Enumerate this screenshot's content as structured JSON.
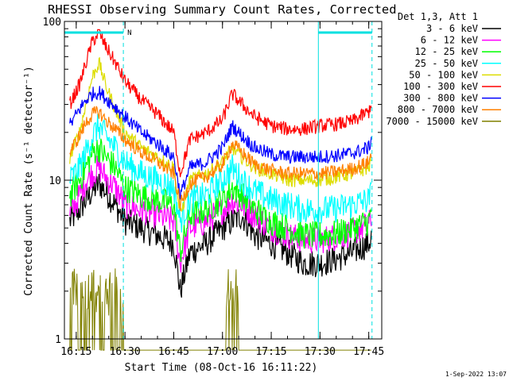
{
  "chart_data": {
    "type": "line",
    "title": "RHESSI Observing Summary Count Rates, Corrected",
    "xlabel": "Start Time (08-Oct-16 16:11:22)",
    "ylabel": "Corrected Count Rate (s⁻¹ detector⁻¹)",
    "yscale": "log",
    "ylim": [
      1,
      100
    ],
    "xlim": [
      "16:11:22",
      "17:49:00"
    ],
    "x_ticks": [
      "16:15",
      "16:30",
      "16:45",
      "17:00",
      "17:15",
      "17:30",
      "17:45"
    ],
    "y_ticks": [
      "1",
      "10",
      "100"
    ],
    "grid": false,
    "legend": {
      "header": "Det 1,3, Att 1",
      "position": "right-outside"
    },
    "annotations": {
      "timestamp": "1-Sep-2022 13:07",
      "segment_flag": "N",
      "cyan_bars": [
        [
          "16:11:22",
          "16:29:30"
        ],
        [
          "17:29:30",
          "17:46:00"
        ]
      ],
      "dashed_lines": [
        "16:29:30",
        "17:46:00"
      ],
      "solid_lines": [
        "17:29:30"
      ]
    },
    "x_points": [
      "16:13",
      "16:16",
      "16:18",
      "16:20",
      "16:22",
      "16:24",
      "16:27",
      "16:30",
      "16:35",
      "16:40",
      "16:45",
      "16:47",
      "16:50",
      "16:55",
      "17:00",
      "17:03",
      "17:06",
      "17:10",
      "17:15",
      "17:20",
      "17:25",
      "17:30",
      "17:35",
      "17:40",
      "17:45",
      "17:46"
    ],
    "series": [
      {
        "name": "3 - 6 keV",
        "color": "#000000",
        "values": [
          5.5,
          6.5,
          7.5,
          8.5,
          9.5,
          8.5,
          7.0,
          5.5,
          5.0,
          4.5,
          4.0,
          2.0,
          3.5,
          4.0,
          5.0,
          5.5,
          6.0,
          4.5,
          4.0,
          3.5,
          3.0,
          3.0,
          3.2,
          3.5,
          4.0,
          4.5
        ]
      },
      {
        "name": "6 - 12 keV",
        "color": "#ff00ff",
        "values": [
          6.0,
          8.0,
          10.0,
          11.0,
          12.0,
          10.5,
          9.0,
          7.0,
          6.5,
          6.0,
          5.5,
          3.0,
          5.0,
          5.5,
          6.5,
          7.5,
          7.0,
          6.0,
          5.0,
          4.5,
          4.2,
          4.2,
          4.4,
          4.7,
          5.2,
          6.0
        ]
      },
      {
        "name": "12 - 25 keV",
        "color": "#00ff00",
        "values": [
          8.0,
          10.0,
          12.0,
          15.0,
          16.0,
          14.0,
          12.0,
          9.0,
          8.0,
          7.5,
          7.0,
          3.5,
          6.0,
          6.5,
          7.5,
          9.0,
          8.0,
          6.5,
          5.5,
          5.0,
          4.5,
          4.5,
          4.6,
          5.0,
          5.5,
          6.5
        ]
      },
      {
        "name": "25 - 50 keV",
        "color": "#00ffff",
        "values": [
          10.0,
          12.0,
          15.0,
          19.0,
          22.0,
          19.0,
          16.0,
          13.0,
          11.0,
          10.0,
          9.0,
          5.5,
          7.5,
          8.0,
          10.0,
          12.0,
          10.0,
          8.5,
          7.5,
          7.0,
          6.5,
          6.5,
          6.6,
          7.0,
          7.5,
          8.5
        ]
      },
      {
        "name": "50 - 100 keV",
        "color": "#dddd00",
        "values": [
          14.0,
          20.0,
          30.0,
          45.0,
          55.0,
          40.0,
          28.0,
          20.0,
          16.0,
          14.0,
          12.0,
          6.0,
          10.0,
          11.0,
          13.0,
          16.0,
          14.0,
          12.0,
          11.0,
          10.0,
          10.0,
          10.0,
          10.5,
          11.0,
          12.0,
          14.0
        ]
      },
      {
        "name": "100 - 300 keV",
        "color": "#ff0000",
        "values": [
          30.0,
          40.0,
          55.0,
          75.0,
          85.0,
          70.0,
          55.0,
          42.0,
          32.0,
          26.0,
          20.0,
          11.0,
          18.0,
          20.0,
          24.0,
          35.0,
          30.0,
          25.0,
          22.0,
          21.0,
          21.0,
          22.0,
          22.5,
          23.5,
          27.0,
          32.0
        ]
      },
      {
        "name": "300 - 800 keV",
        "color": "#0000ff",
        "values": [
          22.0,
          28.0,
          32.0,
          35.0,
          36.0,
          33.0,
          29.0,
          25.0,
          20.0,
          17.0,
          14.0,
          8.0,
          12.0,
          13.0,
          16.0,
          22.0,
          19.0,
          16.0,
          14.5,
          14.0,
          14.0,
          14.0,
          14.3,
          14.8,
          16.0,
          19.0
        ]
      },
      {
        "name": "800 - 7000 keV",
        "color": "#ff8000",
        "values": [
          15.0,
          19.0,
          23.0,
          26.0,
          27.0,
          24.0,
          21.0,
          18.0,
          15.0,
          13.0,
          11.0,
          7.0,
          9.5,
          10.5,
          12.5,
          17.0,
          15.0,
          12.5,
          11.5,
          11.0,
          11.0,
          11.0,
          11.3,
          11.8,
          13.0,
          15.0
        ]
      },
      {
        "name": "7000 - 15000 keV",
        "color": "#808000",
        "values": [
          1.5,
          1.6,
          1.7,
          1.7,
          1.6,
          1.5,
          1.5,
          1.4,
          0.9,
          0.9,
          0.9,
          0.9,
          0.9,
          0.9,
          0.9,
          0.9,
          0.9,
          0.9,
          0.9,
          0.9,
          0.9,
          0.9,
          0.9,
          0.9,
          0.9,
          0.9
        ]
      }
    ]
  }
}
